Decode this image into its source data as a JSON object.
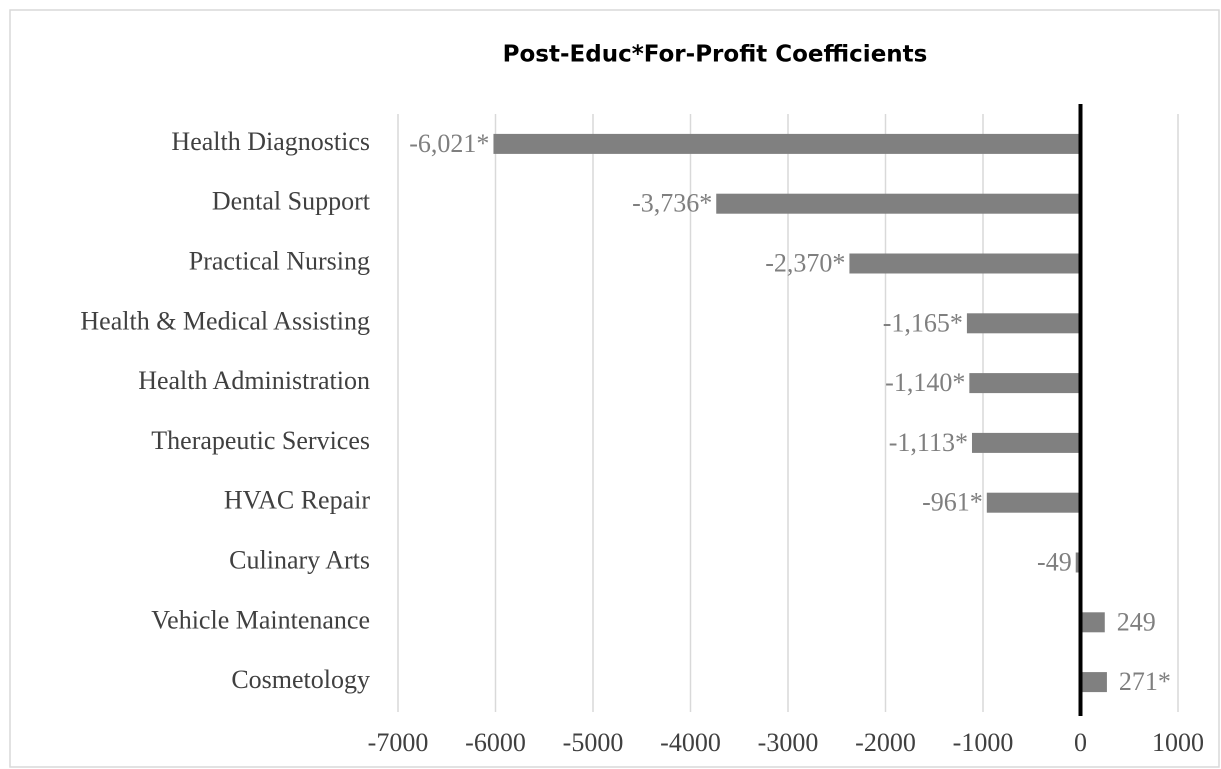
{
  "chart_data": {
    "type": "barh",
    "title": "Post-Educ*For-Profit Coefficients",
    "categories": [
      "Health Diagnostics",
      "Dental Support",
      "Practical Nursing",
      "Health & Medical Assisting",
      "Health Administration",
      "Therapeutic Services",
      "HVAC Repair",
      "Culinary Arts",
      "Vehicle Maintenance",
      "Cosmetology"
    ],
    "values": [
      -6021,
      -3736,
      -2370,
      -1165,
      -1140,
      -1113,
      -961,
      -49,
      249,
      271
    ],
    "value_labels": [
      "-6,021*",
      "-3,736*",
      "-2,370*",
      "-1,165*",
      "-1,140*",
      "-1,113*",
      "-961*",
      "-49",
      "249",
      "271*"
    ],
    "color": "#808080",
    "xlim": [
      -7000,
      1000
    ],
    "xticks": [
      -7000,
      -6000,
      -5000,
      -4000,
      -3000,
      -2000,
      -1000,
      0,
      1000
    ],
    "grid": true
  }
}
